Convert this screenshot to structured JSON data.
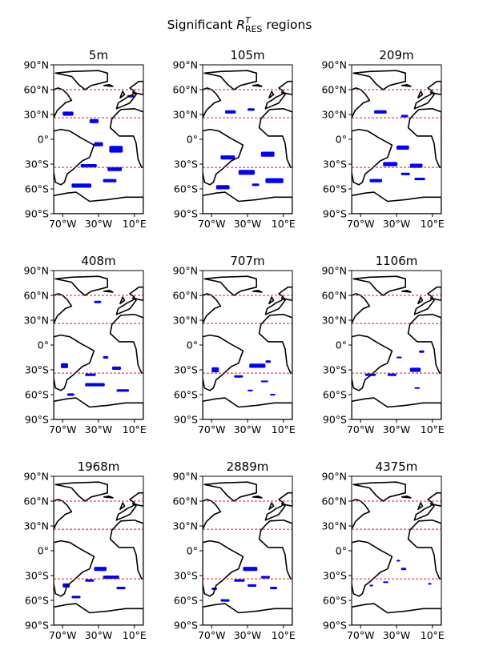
{
  "figure": {
    "title_prefix": "Significant ",
    "title_symbol": "R",
    "title_superscript": "T",
    "title_subscript": "RES",
    "title_suffix": " regions"
  },
  "axes": {
    "lat_ticks": [
      90,
      60,
      30,
      0,
      -30,
      -60,
      -90
    ],
    "lat_tick_labels": [
      "90°N",
      "60°N",
      "30°N",
      "0°",
      "30°S",
      "60°S",
      "90°S"
    ],
    "lon_ticks": [
      -70,
      -30,
      10
    ],
    "lon_tick_labels": [
      "70°W",
      "30°W",
      "10°E"
    ],
    "lon_range": [
      -80,
      20
    ],
    "lat_range": [
      -90,
      90
    ],
    "reference_latitudes": [
      60,
      26,
      -34
    ],
    "reference_line_color": "#e41a1c",
    "region_color": "#0000ff",
    "coast_color": "#000000"
  },
  "panels": [
    {
      "depth": "5m",
      "regions": [
        [
          -70,
          31,
          12,
          5
        ],
        [
          -40,
          22,
          10,
          5
        ],
        [
          -18,
          -12,
          15,
          8
        ],
        [
          -35,
          -6,
          10,
          5
        ],
        [
          -50,
          -32,
          18,
          4
        ],
        [
          -20,
          -36,
          16,
          5
        ],
        [
          -60,
          -56,
          22,
          5
        ],
        [
          -25,
          -50,
          15,
          4
        ],
        [
          2,
          52,
          8,
          3
        ]
      ]
    },
    {
      "depth": "105m",
      "regions": [
        [
          -55,
          33,
          12,
          4
        ],
        [
          -30,
          36,
          8,
          3
        ],
        [
          -60,
          -22,
          16,
          5
        ],
        [
          -15,
          -18,
          15,
          6
        ],
        [
          -40,
          -40,
          18,
          6
        ],
        [
          -65,
          -58,
          15,
          5
        ],
        [
          -10,
          -50,
          20,
          6
        ],
        [
          -25,
          -55,
          8,
          3
        ]
      ]
    },
    {
      "depth": "209m",
      "regions": [
        [
          -55,
          33,
          14,
          4
        ],
        [
          -25,
          28,
          8,
          3
        ],
        [
          -30,
          -10,
          14,
          5
        ],
        [
          -45,
          -30,
          16,
          5
        ],
        [
          -15,
          -32,
          14,
          5
        ],
        [
          -60,
          -50,
          14,
          4
        ],
        [
          -10,
          -48,
          12,
          3
        ],
        [
          -25,
          -42,
          10,
          3
        ]
      ]
    },
    {
      "depth": "408m",
      "regions": [
        [
          -35,
          52,
          8,
          3
        ],
        [
          -72,
          -25,
          8,
          6
        ],
        [
          -25,
          -15,
          6,
          3
        ],
        [
          -15,
          -28,
          10,
          4
        ],
        [
          -45,
          -36,
          12,
          3
        ],
        [
          -45,
          -48,
          22,
          4
        ],
        [
          -10,
          -55,
          14,
          3
        ],
        [
          -65,
          -60,
          8,
          3
        ]
      ]
    },
    {
      "depth": "707m",
      "regions": [
        [
          -28,
          -25,
          18,
          5
        ],
        [
          -70,
          -30,
          8,
          6
        ],
        [
          -45,
          -38,
          10,
          3
        ],
        [
          -15,
          -44,
          8,
          2
        ],
        [
          -30,
          -55,
          6,
          2
        ],
        [
          -5,
          -60,
          6,
          2
        ],
        [
          -10,
          -20,
          6,
          3
        ]
      ]
    },
    {
      "depth": "1106m",
      "regions": [
        [
          -5,
          -8,
          6,
          3
        ],
        [
          -15,
          -30,
          12,
          5
        ],
        [
          -40,
          -36,
          10,
          3
        ],
        [
          -65,
          -36,
          12,
          3
        ],
        [
          -30,
          -15,
          6,
          2
        ],
        [
          -10,
          -52,
          6,
          2
        ]
      ]
    },
    {
      "depth": "1968m",
      "regions": [
        [
          -35,
          -22,
          14,
          5
        ],
        [
          -25,
          -32,
          18,
          4
        ],
        [
          -45,
          -36,
          10,
          3
        ],
        [
          -70,
          -42,
          8,
          5
        ],
        [
          -10,
          -45,
          10,
          3
        ],
        [
          -60,
          -56,
          10,
          3
        ]
      ]
    },
    {
      "depth": "2889m",
      "regions": [
        [
          -35,
          -22,
          16,
          5
        ],
        [
          -15,
          -32,
          10,
          3
        ],
        [
          -45,
          -36,
          12,
          3
        ],
        [
          -30,
          -42,
          10,
          3
        ],
        [
          -70,
          -46,
          6,
          3
        ],
        [
          -5,
          -45,
          8,
          3
        ],
        [
          -60,
          -60,
          10,
          3
        ]
      ]
    },
    {
      "depth": "4375m",
      "regions": [
        [
          -25,
          -22,
          6,
          3
        ],
        [
          -30,
          -12,
          4,
          2
        ],
        [
          -45,
          -38,
          6,
          2
        ],
        [
          -60,
          -42,
          4,
          2
        ],
        [
          5,
          -40,
          4,
          2
        ]
      ]
    }
  ],
  "coastlines": [
    [
      [
        -78,
        80
      ],
      [
        -60,
        82
      ],
      [
        -30,
        83
      ],
      [
        -20,
        80
      ],
      [
        -20,
        70
      ],
      [
        -38,
        65
      ],
      [
        -45,
        60
      ],
      [
        -52,
        66
      ],
      [
        -60,
        76
      ],
      [
        -78,
        80
      ]
    ],
    [
      [
        -80,
        60
      ],
      [
        -75,
        62
      ],
      [
        -70,
        60
      ],
      [
        -65,
        55
      ],
      [
        -60,
        47
      ],
      [
        -67,
        44
      ],
      [
        -70,
        41
      ],
      [
        -76,
        35
      ],
      [
        -80,
        26
      ],
      [
        -80,
        60
      ]
    ],
    [
      [
        -80,
        10
      ],
      [
        -72,
        12
      ],
      [
        -62,
        10
      ],
      [
        -50,
        2
      ],
      [
        -35,
        -7
      ],
      [
        -40,
        -22
      ],
      [
        -48,
        -26
      ],
      [
        -58,
        -36
      ],
      [
        -65,
        -42
      ],
      [
        -68,
        -52
      ],
      [
        -72,
        -55
      ],
      [
        -78,
        -52
      ],
      [
        -80,
        -40
      ],
      [
        -80,
        10
      ]
    ],
    [
      [
        -17,
        14
      ],
      [
        -15,
        25
      ],
      [
        -8,
        33
      ],
      [
        -5,
        36
      ],
      [
        10,
        37
      ],
      [
        20,
        33
      ],
      [
        20,
        -34
      ],
      [
        18,
        -34
      ],
      [
        14,
        -24
      ],
      [
        12,
        -5
      ],
      [
        9,
        4
      ],
      [
        -7,
        4
      ],
      [
        -17,
        14
      ]
    ],
    [
      [
        -10,
        37
      ],
      [
        -8,
        44
      ],
      [
        -2,
        48
      ],
      [
        2,
        51
      ],
      [
        8,
        54
      ],
      [
        10,
        58
      ],
      [
        5,
        62
      ],
      [
        15,
        70
      ],
      [
        20,
        70
      ],
      [
        20,
        54
      ],
      [
        15,
        55
      ],
      [
        8,
        57
      ],
      [
        12,
        54
      ],
      [
        5,
        44
      ],
      [
        3,
        43
      ],
      [
        -10,
        37
      ]
    ],
    [
      [
        -6,
        50
      ],
      [
        -3,
        58
      ],
      [
        -1,
        54
      ],
      [
        -6,
        50
      ]
    ],
    [
      [
        -24,
        65
      ],
      [
        -18,
        66
      ],
      [
        -14,
        64
      ],
      [
        -24,
        65
      ]
    ],
    [
      [
        -80,
        -68
      ],
      [
        -65,
        -65
      ],
      [
        -55,
        -64
      ],
      [
        -40,
        -75
      ],
      [
        -20,
        -73
      ],
      [
        0,
        -70
      ],
      [
        20,
        -70
      ],
      [
        20,
        -90
      ],
      [
        -80,
        -90
      ],
      [
        -80,
        -68
      ]
    ]
  ]
}
